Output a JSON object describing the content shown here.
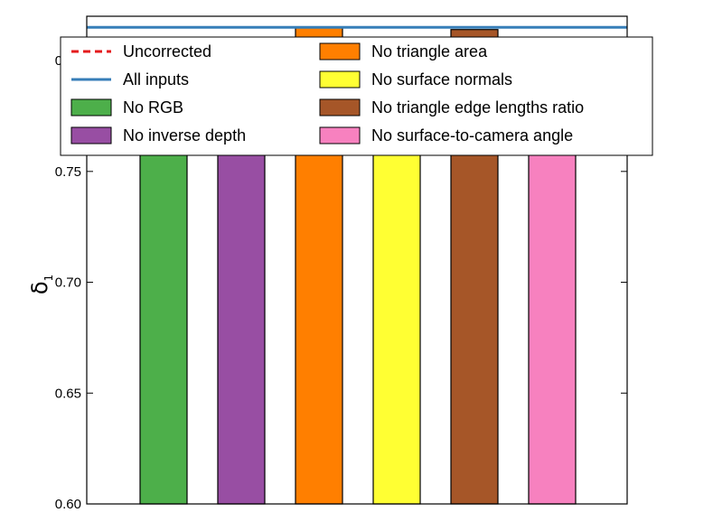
{
  "chart_data": {
    "type": "bar",
    "ylabel": "δ",
    "ylabel_subscript": "1",
    "ylim": [
      0.6,
      0.82
    ],
    "yticks": [
      0.6,
      0.65,
      0.7,
      0.75,
      0.8
    ],
    "ytick_labels": [
      "0.60",
      "0.65",
      "0.70",
      "0.75",
      "0.80"
    ],
    "bars": [
      {
        "name": "No RGB",
        "value": 0.808,
        "color": "#4daf4a"
      },
      {
        "name": "No inverse depth",
        "value": 0.765,
        "color": "#984ea3"
      },
      {
        "name": "No triangle area",
        "value": 0.815,
        "color": "#ff7f00"
      },
      {
        "name": "No surface normals",
        "value": 0.797,
        "color": "#ffff33"
      },
      {
        "name": "No triangle edge lengths ratio",
        "value": 0.814,
        "color": "#a65628"
      },
      {
        "name": "No surface-to-camera angle",
        "value": 0.81,
        "color": "#f781bf"
      }
    ],
    "reference_lines": [
      {
        "name": "Uncorrected",
        "value": 0.796,
        "style": "dashed",
        "color": "#e41a1c"
      },
      {
        "name": "All inputs",
        "value": 0.815,
        "style": "solid",
        "color": "#377eb8"
      }
    ],
    "legend": {
      "placement": "top",
      "columns": [
        [
          "Uncorrected",
          "All inputs",
          "No RGB",
          "No inverse depth"
        ],
        [
          "No triangle area",
          "No surface normals",
          "No triangle edge lengths ratio",
          "No surface-to-camera angle"
        ]
      ]
    },
    "grid": false
  }
}
